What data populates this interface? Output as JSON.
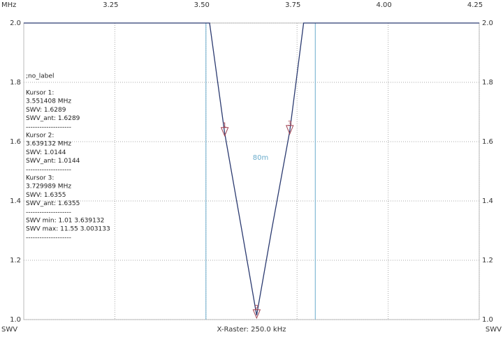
{
  "chart_data": {
    "type": "line",
    "x_unit_label": "MHz",
    "y_label_left": "SWV",
    "y_label_right": "SWV",
    "x_caption": "X-Raster: 250.0 kHz",
    "xlim": [
      3.0,
      4.25
    ],
    "xticks": [
      3.25,
      {
        "value": 3.5,
        "label": "3.50"
      },
      {
        "value": 3.75,
        "label": "3.75"
      },
      {
        "value": 4.0,
        "label": "4.00"
      },
      4.25
    ],
    "ylim": [
      1.0,
      2.0
    ],
    "yticks": [
      {
        "value": 1.0,
        "label": "1.0"
      },
      1.2,
      1.4,
      1.6,
      1.8,
      {
        "value": 2.0,
        "label": "2.0"
      }
    ],
    "grid": true,
    "series": [
      {
        "name": "SWV",
        "color": "#2b3a70",
        "x": [
          3.0,
          3.51,
          3.551408,
          3.6,
          3.639132,
          3.68,
          3.729989,
          3.768,
          4.25
        ],
        "values": [
          2.0,
          2.0,
          1.6289,
          1.29,
          1.0144,
          1.3,
          1.6355,
          2.0,
          2.0
        ]
      }
    ],
    "band": {
      "label": "80m",
      "start": 3.5,
      "end": 3.8,
      "color": "#6aaccc"
    },
    "cursors": [
      {
        "label": "1",
        "x": 3.551408,
        "y": 1.6289
      },
      {
        "label": "2",
        "x": 3.639132,
        "y": 1.0144
      },
      {
        "label": "3",
        "x": 3.729989,
        "y": 1.6355
      }
    ],
    "info_lines": [
      ";no_label",
      "Kursor 1:",
      "3.551408 MHz",
      "SWV: 1.6289",
      "SWV_ant: 1.6289",
      "--------------------",
      "Kursor 2:",
      "3.639132 MHz",
      "SWV: 1.0144",
      "SWV_ant: 1.0144",
      "--------------------",
      "Kursor 3:",
      "3.729989 MHz",
      "SWV: 1.6355",
      "SWV_ant: 1.6355",
      "--------------------",
      "SWV min: 1.01  3.639132",
      "SWV max: 11.55  3.003133",
      "--------------------"
    ]
  }
}
